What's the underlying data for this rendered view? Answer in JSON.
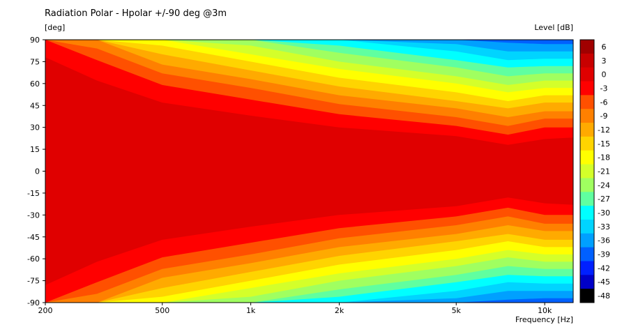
{
  "chart_data": {
    "type": "heatmap",
    "title": "Radiation Polar - Hpolar +/-90 deg @3m",
    "ylabel": "[deg]",
    "xlabel": "Frequency  [Hz]",
    "zlabel": "Level  [dB]",
    "x_scale": "log",
    "xlim": [
      200,
      12500
    ],
    "ylim": [
      -90,
      90
    ],
    "x_ticks": [
      {
        "value": 200,
        "label": "200"
      },
      {
        "value": 500,
        "label": "500"
      },
      {
        "value": 1000,
        "label": "1k"
      },
      {
        "value": 2000,
        "label": "2k"
      },
      {
        "value": 5000,
        "label": "5k"
      },
      {
        "value": 10000,
        "label": "10k"
      }
    ],
    "y_ticks": [
      90,
      75,
      60,
      45,
      30,
      15,
      0,
      -15,
      -30,
      -45,
      -60,
      -75,
      -90
    ],
    "colorbar": {
      "levels": [
        6,
        3,
        0,
        -3,
        -6,
        -9,
        -12,
        -15,
        -18,
        -21,
        -24,
        -27,
        -30,
        -33,
        -36,
        -39,
        -42,
        -45,
        -48
      ],
      "colors": [
        "#a00000",
        "#c80000",
        "#e00000",
        "#ff0000",
        "#ff5000",
        "#ff8000",
        "#ffaa00",
        "#ffd400",
        "#ffff00",
        "#d4ff2a",
        "#a0ff60",
        "#60ffa0",
        "#00ffff",
        "#00d4ff",
        "#00a0ff",
        "#0060ff",
        "#0020ff",
        "#0000c8",
        "#000000"
      ]
    },
    "contour_boundaries": {
      "frequencies_hz": [
        200,
        300,
        500,
        1000,
        2000,
        5000,
        7500,
        10000,
        12500
      ],
      "note": "half-width angle (deg) where the level falls to each value",
      "minus3": [
        78,
        62,
        47,
        38,
        30,
        24,
        18,
        22,
        23
      ],
      "minus6": [
        90,
        76,
        59,
        49,
        39,
        31,
        25,
        30,
        30
      ],
      "minus9": [
        90,
        84,
        67,
        57,
        46,
        37,
        31,
        36,
        36
      ],
      "minus12": [
        90,
        90,
        73,
        63,
        52,
        43,
        37,
        41,
        41
      ],
      "minus15": [
        90,
        90,
        80,
        69,
        58,
        48,
        43,
        47,
        47
      ],
      "minus18": [
        90,
        90,
        86,
        75,
        64,
        54,
        48,
        52,
        52
      ],
      "minus21": [
        90,
        90,
        90,
        80,
        70,
        60,
        54,
        57,
        57
      ],
      "minus24": [
        90,
        90,
        90,
        86,
        75,
        65,
        59,
        62,
        62
      ],
      "minus27": [
        90,
        90,
        90,
        90,
        81,
        71,
        65,
        67,
        67
      ],
      "minus30": [
        90,
        90,
        90,
        90,
        86,
        76,
        71,
        72,
        72
      ],
      "minus33": [
        90,
        90,
        90,
        90,
        90,
        82,
        76,
        77,
        77
      ],
      "minus36": [
        90,
        90,
        90,
        90,
        90,
        87,
        82,
        82,
        82
      ],
      "minus39": [
        90,
        90,
        90,
        90,
        90,
        90,
        88,
        87,
        87
      ]
    }
  }
}
